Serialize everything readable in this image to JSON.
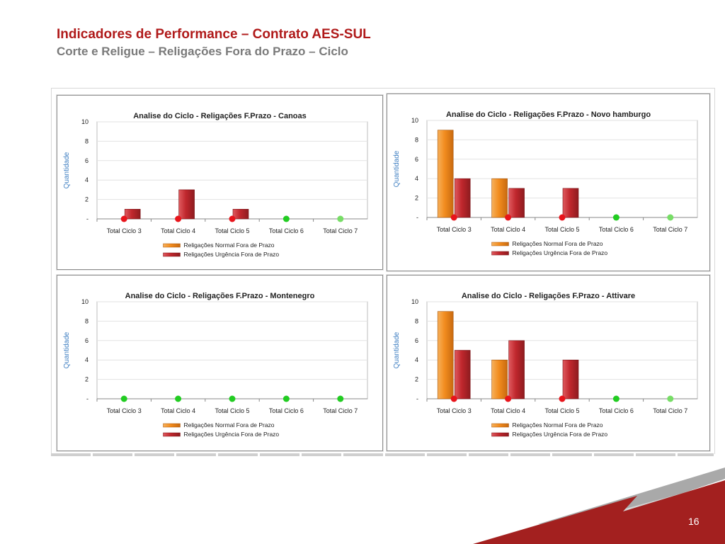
{
  "slide": {
    "title": "Indicadores de Performance – Contrato AES-SUL",
    "subtitle": "Corte e Religue – Religações Fora do Prazo – Ciclo",
    "page_number": "16"
  },
  "colors": {
    "title": "#b01a1a",
    "normal_bar": "#f28c1e",
    "urgencia_bar": "#c0272d",
    "dot_red": "#e8141b",
    "dot_green": "#22cc22",
    "footer_red": "#a3201f",
    "footer_gray": "#9a9a9a"
  },
  "chart_data": [
    {
      "type": "bar",
      "title": "Analise do Ciclo - Religações  F.Prazo - Canoas",
      "ylabel": "Quantidade",
      "ylim": [
        0,
        10
      ],
      "yticks": [
        "-",
        "2",
        "4",
        "6",
        "8",
        "10"
      ],
      "categories": [
        "Total Ciclo 3",
        "Total Ciclo 4",
        "Total Ciclo 5",
        "Total Ciclo 6",
        "Total Ciclo 7"
      ],
      "series": [
        {
          "name": "Religações Normal Fora de Prazo",
          "values": [
            0,
            0,
            0,
            0,
            0
          ]
        },
        {
          "name": "Religações Urgência Fora de Prazo",
          "values": [
            1,
            3,
            1,
            0,
            0
          ]
        }
      ],
      "status_dots": [
        "red",
        "red",
        "red",
        "green",
        "lightgreen"
      ],
      "legend": "bottom"
    },
    {
      "type": "bar",
      "title": "Analise do Ciclo - Religações  F.Prazo - Novo hamburgo",
      "ylabel": "Quantidade",
      "ylim": [
        0,
        10
      ],
      "yticks": [
        "-",
        "2",
        "4",
        "6",
        "8",
        "10"
      ],
      "categories": [
        "Total Ciclo 3",
        "Total Ciclo 4",
        "Total Ciclo 5",
        "Total Ciclo 6",
        "Total Ciclo 7"
      ],
      "series": [
        {
          "name": "Religações Normal Fora de Prazo",
          "values": [
            9,
            4,
            0,
            0,
            0
          ]
        },
        {
          "name": "Religações Urgência Fora de Prazo",
          "values": [
            4,
            3,
            3,
            0,
            0
          ]
        }
      ],
      "status_dots": [
        "red",
        "red",
        "red",
        "green",
        "lightgreen"
      ],
      "legend": "bottom"
    },
    {
      "type": "bar",
      "title": "Analise do Ciclo - Religações  F.Prazo - Montenegro",
      "ylabel": "Quantidade",
      "ylim": [
        0,
        10
      ],
      "yticks": [
        "-",
        "2",
        "4",
        "6",
        "8",
        "10"
      ],
      "categories": [
        "Total Ciclo 3",
        "Total Ciclo 4",
        "Total Ciclo 5",
        "Total Ciclo 6",
        "Total Ciclo 7"
      ],
      "series": [
        {
          "name": "Religações Normal Fora de Prazo",
          "values": [
            0,
            0,
            0,
            0,
            0
          ]
        },
        {
          "name": "Religações Urgência Fora de Prazo",
          "values": [
            0,
            0,
            0,
            0,
            0
          ]
        }
      ],
      "status_dots": [
        "green",
        "green",
        "green",
        "green",
        "green"
      ],
      "legend": "bottom"
    },
    {
      "type": "bar",
      "title": "Analise do Ciclo - Religações  F.Prazo - Attivare",
      "ylabel": "Quantidade",
      "ylim": [
        0,
        10
      ],
      "yticks": [
        "-",
        "2",
        "4",
        "6",
        "8",
        "10"
      ],
      "categories": [
        "Total Ciclo 3",
        "Total Ciclo 4",
        "Total Ciclo 5",
        "Total Ciclo 6",
        "Total Ciclo 7"
      ],
      "series": [
        {
          "name": "Religações Normal Fora de Prazo",
          "values": [
            9,
            4,
            0,
            0,
            0
          ]
        },
        {
          "name": "Religações Urgência Fora de Prazo",
          "values": [
            5,
            6,
            4,
            0,
            0
          ]
        }
      ],
      "status_dots": [
        "red",
        "red",
        "red",
        "green",
        "lightgreen"
      ],
      "legend": "bottom"
    }
  ]
}
